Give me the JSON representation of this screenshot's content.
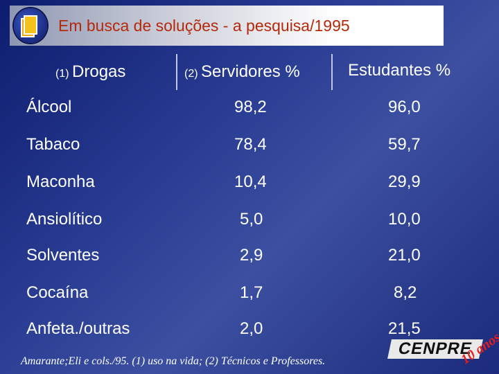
{
  "header": {
    "title": "Em busca de soluções  - a pesquisa/1995"
  },
  "table": {
    "columns": [
      {
        "note": "(1)",
        "label": "Drogas"
      },
      {
        "note": "(2)",
        "label": "Servidores %"
      },
      {
        "note": "",
        "label": "Estudantes %"
      }
    ],
    "rows": [
      {
        "drug": "Álcool",
        "servidores": "98,2",
        "estudantes": "96,0"
      },
      {
        "drug": "Tabaco",
        "servidores": "78,4",
        "estudantes": "59,7"
      },
      {
        "drug": "Maconha",
        "servidores": "10,4",
        "estudantes": "29,9"
      },
      {
        "drug": "Ansiolítico",
        "servidores": "5,0",
        "estudantes": "10,0"
      },
      {
        "drug": "Solventes",
        "servidores": "2,9",
        "estudantes": "21,0"
      },
      {
        "drug": "Cocaína",
        "servidores": "1,7",
        "estudantes": "8,2"
      },
      {
        "drug": "Anfeta./outras",
        "servidores": "2,0",
        "estudantes": "21,5"
      }
    ]
  },
  "footer": {
    "citation": "Amarante;Eli e cols./95. (1) uso na vida; (2) Técnicos e Professores.",
    "logo_text": "CENPRE",
    "badge_text": "10 anos"
  },
  "colors": {
    "background": "#1b2a7a",
    "title_text": "#b6280a",
    "badge": "#e61e1e"
  }
}
